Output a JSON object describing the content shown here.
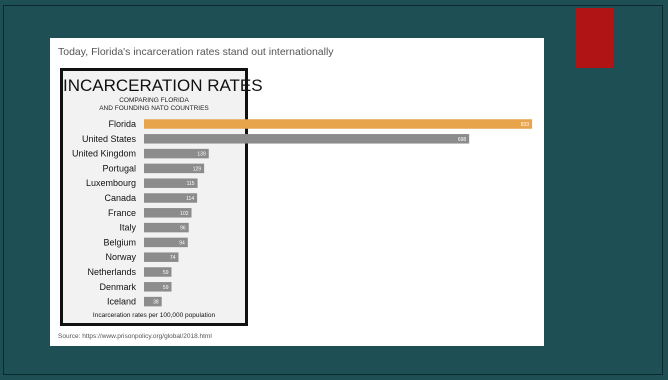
{
  "slide": {
    "title": "Today, Florida's incarceration rates stand out internationally",
    "source": "Source: https://www.prisonpolicy.org/global/2018.html"
  },
  "colors": {
    "background": "#1e4f55",
    "accent": "#b01414",
    "highlight_bar": "#e8a44a",
    "bar": "#8c8c8c"
  },
  "chart_data": {
    "type": "bar",
    "orientation": "horizontal",
    "title": "INCARCERATION RATES",
    "subtitle_lines": [
      "COMPARING FLORIDA",
      "AND FOUNDING NATO COUNTRIES"
    ],
    "note": "Incarceration rates per 100,000 population",
    "categories": [
      "Florida",
      "United States",
      "United Kingdom",
      "Portugal",
      "Luxembourg",
      "Canada",
      "France",
      "Italy",
      "Belgium",
      "Norway",
      "Netherlands",
      "Denmark",
      "Iceland"
    ],
    "values": [
      833,
      698,
      139,
      129,
      115,
      114,
      102,
      96,
      94,
      74,
      59,
      59,
      38
    ],
    "highlight": "Florida",
    "grid": false,
    "legend": "none"
  }
}
